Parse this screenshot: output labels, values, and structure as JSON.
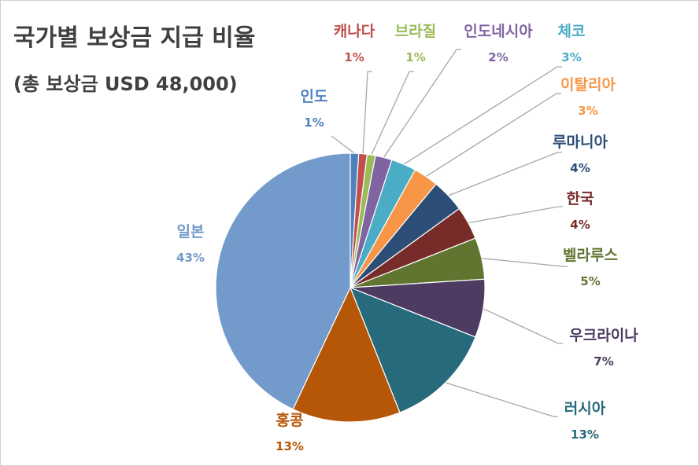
{
  "chart_data": {
    "type": "pie",
    "title": "국가별 보상금 지급 비율",
    "subtitle": "(총 보상금 USD 48,000)",
    "legend": "none",
    "slices": [
      {
        "label": "인도",
        "value": 1,
        "display": "1%",
        "color": "#4f81bd"
      },
      {
        "label": "캐나다",
        "value": 1,
        "display": "1%",
        "color": "#c0504d"
      },
      {
        "label": "브라질",
        "value": 1,
        "display": "1%",
        "color": "#9bbb59"
      },
      {
        "label": "인도네시아",
        "value": 2,
        "display": "2%",
        "color": "#8064a2"
      },
      {
        "label": "체코",
        "value": 3,
        "display": "3%",
        "color": "#4bacc6"
      },
      {
        "label": "이탈리아",
        "value": 3,
        "display": "3%",
        "color": "#f79646"
      },
      {
        "label": "루마니아",
        "value": 4,
        "display": "4%",
        "color": "#2c4d75"
      },
      {
        "label": "한국",
        "value": 4,
        "display": "4%",
        "color": "#772c2a"
      },
      {
        "label": "벨라루스",
        "value": 5,
        "display": "5%",
        "color": "#5f7530"
      },
      {
        "label": "우크라이나",
        "value": 7,
        "display": "7%",
        "color": "#4d3b62"
      },
      {
        "label": "러시아",
        "value": 13,
        "display": "13%",
        "color": "#276a7c"
      },
      {
        "label": "홍콩",
        "value": 13,
        "display": "13%",
        "color": "#b65708"
      },
      {
        "label": "일본",
        "value": 43,
        "display": "43%",
        "color": "#729aca"
      }
    ]
  }
}
